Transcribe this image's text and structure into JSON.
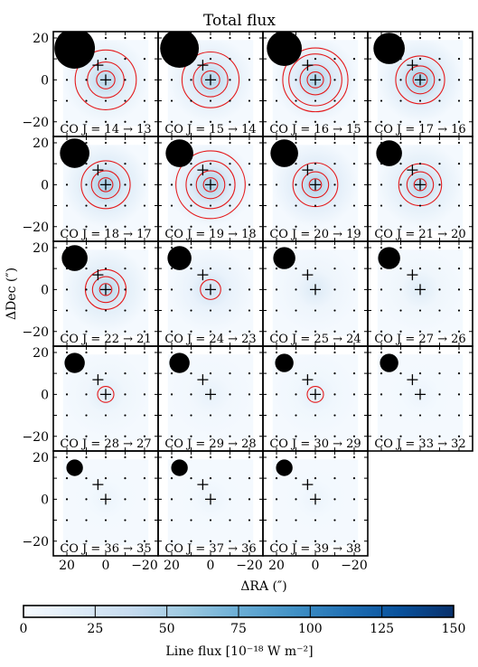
{
  "chart_data": {
    "type": "heatmap",
    "title": "Total flux",
    "xlabel": "ΔRA (″)",
    "ylabel": "ΔDec (″)",
    "x_ticks": [
      "20",
      "0",
      "−20"
    ],
    "y_ticks": [
      "20",
      "0",
      "−20"
    ],
    "xlim": [
      27,
      -27
    ],
    "ylim": [
      -27,
      23
    ],
    "colorbar": {
      "label": "Line flux [10⁻¹⁸ W m⁻²]",
      "range": [
        0,
        150
      ],
      "ticks": [
        "0",
        "25",
        "50",
        "75",
        "100",
        "125",
        "150"
      ],
      "colors": [
        "#f7fbff",
        "#deebf7",
        "#c6dbef",
        "#9ecae1",
        "#6baed6",
        "#4292c6",
        "#2171b5",
        "#08519c",
        "#08306b"
      ]
    },
    "contour_color": "#e41a1c",
    "markers": {
      "plus_symbols": [
        {
          "x": 4,
          "y": 7
        },
        {
          "x": 0,
          "y": 0
        }
      ]
    },
    "panels": [
      {
        "label": "CO J = 14 → 13",
        "peak": 45,
        "beam": 11,
        "contours": [
          4.5,
          9,
          15
        ]
      },
      {
        "label": "CO J = 15 → 14",
        "peak": 48,
        "beam": 10.5,
        "contours": [
          4.5,
          8.5,
          14
        ]
      },
      {
        "label": "CO J = 16 → 15",
        "peak": 50,
        "beam": 9.5,
        "contours": [
          4,
          7.5,
          13,
          16
        ]
      },
      {
        "label": "CO J = 17 → 16",
        "peak": 55,
        "beam": 8.5,
        "contours": [
          3.5,
          7,
          12
        ]
      },
      {
        "label": "CO J = 18 → 17",
        "peak": 55,
        "beam": 8,
        "contours": [
          3.5,
          7,
          12
        ]
      },
      {
        "label": "CO J = 19 → 18",
        "peak": 52,
        "beam": 7.5,
        "contours": [
          3.5,
          7,
          12,
          17
        ]
      },
      {
        "label": "CO J = 20 → 19",
        "peak": 50,
        "beam": 7.5,
        "contours": [
          3,
          6.5,
          11
        ]
      },
      {
        "label": "CO J = 21 → 20",
        "peak": 45,
        "beam": 7,
        "contours": [
          3,
          6.5,
          10.5
        ]
      },
      {
        "label": "CO J = 22 → 21",
        "peak": 45,
        "beam": 7,
        "contours": [
          3,
          6.5,
          10
        ]
      },
      {
        "label": "CO J = 24 → 23",
        "peak": 30,
        "beam": 6.5,
        "contours": [
          5
        ]
      },
      {
        "label": "CO J = 25 → 24",
        "peak": 20,
        "beam": 6,
        "contours": []
      },
      {
        "label": "CO J = 27 → 26",
        "peak": 18,
        "beam": 6,
        "contours": []
      },
      {
        "label": "CO J = 28 → 27",
        "peak": 18,
        "beam": 5.5,
        "contours": [
          4
        ]
      },
      {
        "label": "CO J = 29 → 28",
        "peak": 12,
        "beam": 5.5,
        "contours": []
      },
      {
        "label": "CO J = 30 → 29",
        "peak": 15,
        "beam": 5,
        "contours": [
          4
        ]
      },
      {
        "label": "CO J = 33 → 32",
        "peak": 8,
        "beam": 5,
        "contours": []
      },
      {
        "label": "CO J = 36 → 35",
        "peak": 8,
        "beam": 4.5,
        "contours": []
      },
      {
        "label": "CO J = 37 → 36",
        "peak": 8,
        "beam": 4.5,
        "contours": []
      },
      {
        "label": "CO J = 39 → 38",
        "peak": 8,
        "beam": 4.5,
        "contours": []
      }
    ]
  }
}
